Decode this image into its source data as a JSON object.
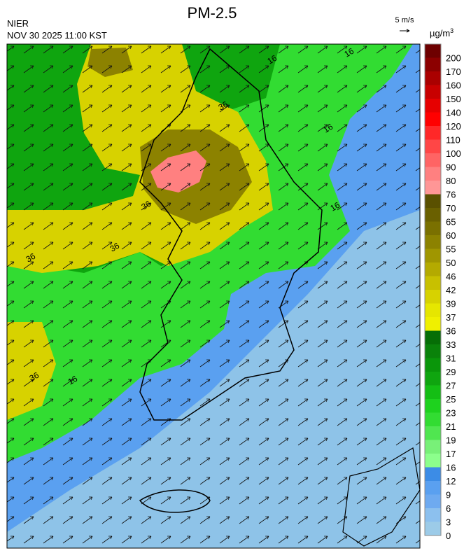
{
  "header": {
    "title": "PM-2.5",
    "source": "NIER",
    "timestamp": "NOV 30 2025 11:00 KST",
    "wind_scale": "5 m/s"
  },
  "colorbar": {
    "unit": "µg/m",
    "unit_exp": "3",
    "ticks": [
      0,
      3,
      6,
      9,
      12,
      16,
      17,
      19,
      21,
      23,
      25,
      27,
      29,
      31,
      33,
      36,
      37,
      39,
      42,
      46,
      50,
      55,
      60,
      65,
      70,
      76,
      80,
      90,
      100,
      110,
      120,
      140,
      150,
      160,
      170,
      200
    ],
    "colors": [
      "#9ccbe8",
      "#8cc0ee",
      "#6eaaf0",
      "#5aa0f0",
      "#3c8ce6",
      "#8cff8c",
      "#78f078",
      "#50e650",
      "#32dc32",
      "#1ed21e",
      "#14be14",
      "#0fa50f",
      "#0a960a",
      "#0a820a",
      "#066e06",
      "#f0f000",
      "#e6e600",
      "#d7d200",
      "#c8c000",
      "#b4aa00",
      "#a09600",
      "#8c8200",
      "#7a7000",
      "#6a6000",
      "#5a5000",
      "#ff9696",
      "#ff8080",
      "#ff6464",
      "#ff4646",
      "#ff2828",
      "#ff0000",
      "#e60000",
      "#c80000",
      "#aa0000",
      "#8c0000",
      "#6e0000"
    ]
  },
  "contour_labels": [
    "16",
    "16",
    "16",
    "16",
    "36",
    "36",
    "36",
    "36",
    "36",
    "16"
  ]
}
